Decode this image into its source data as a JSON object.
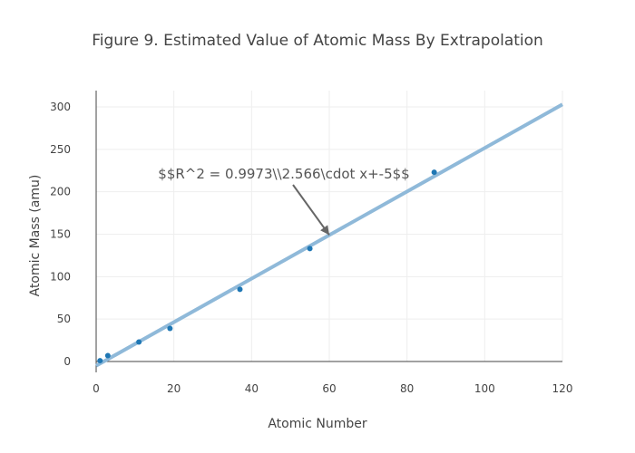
{
  "chart_data": {
    "type": "scatter",
    "title": "Figure 9. Estimated Value of Atomic Mass By Extrapolation",
    "xlabel": "Atomic Number",
    "ylabel": "Atomic Mass (amu)",
    "xlim": [
      -1.5,
      120
    ],
    "ylim": [
      -18,
      320
    ],
    "x_ticks": [
      0,
      20,
      40,
      60,
      80,
      100,
      120
    ],
    "y_ticks": [
      0,
      50,
      100,
      150,
      200,
      250,
      300
    ],
    "grid": true,
    "series": [
      {
        "type": "scatter",
        "x": [
          1,
          3,
          11,
          19,
          37,
          55,
          87
        ],
        "y": [
          1,
          7,
          23,
          39,
          85,
          133,
          223
        ]
      },
      {
        "type": "line",
        "x": [
          0,
          120
        ],
        "y": [
          -5,
          302.9
        ]
      }
    ],
    "annotation": {
      "text": "$$R^2 = 0.9973\\\\2.566\\cdot x+-5$$",
      "x": 60,
      "y": 149
    },
    "colors": {
      "markers": "#1f77b4",
      "fit_line": "#8fb9d9",
      "grid": "#eeeeee",
      "axis": "#444444",
      "annotation_arrow": "#666666"
    }
  }
}
